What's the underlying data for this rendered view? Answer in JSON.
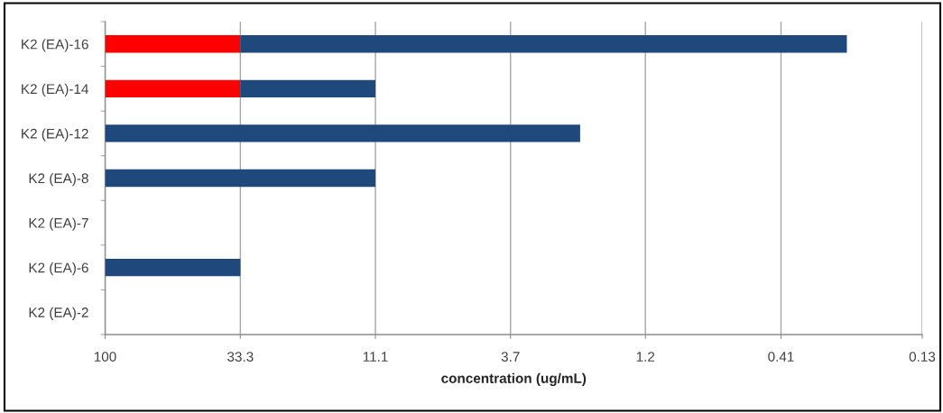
{
  "chart_data": {
    "type": "bar",
    "orientation": "horizontal",
    "log": "x",
    "categories": [
      "K2 (EA)-16",
      "K2 (EA)-14",
      "K2 (EA)-12",
      "K2 (EA)-8",
      "K2 (EA)-7",
      "K2 (EA)-6",
      "K2 (EA)-2"
    ],
    "series": [
      {
        "color": "#ff0000",
        "base": [
          100,
          100,
          null,
          null,
          null,
          null,
          null
        ],
        "values": [
          -66.7,
          -66.7,
          null,
          null,
          null,
          null,
          null
        ]
      },
      {
        "color": "#1f497d",
        "base": [
          33.3,
          33.3,
          100,
          100,
          null,
          100,
          null
        ],
        "values": [
          -33.06,
          -22.2,
          -97.9,
          -88.9,
          null,
          -66.7,
          null
        ]
      }
    ],
    "xlim": [
      100,
      0.13
    ],
    "xticks": [
      100,
      33.3,
      11.1,
      3.7,
      {
        "value": 1.235,
        "label": "1.2"
      },
      0.41,
      0.13
    ],
    "xlabel": "concentration (ug/mL)",
    "grid": "x"
  }
}
